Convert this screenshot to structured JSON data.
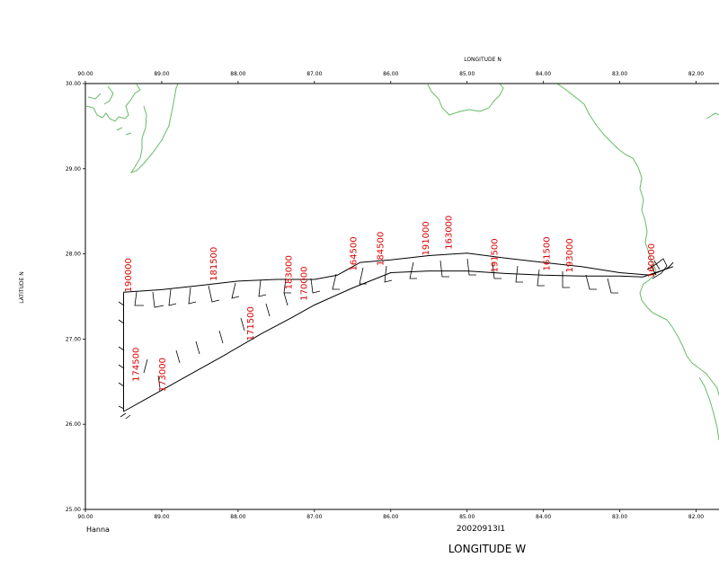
{
  "chart_data": {
    "type": "map",
    "top_axis_label": "LONGITUDE  N",
    "bottom_axis_label": "LONGITUDE  W",
    "left_axis_label": "LATITUDE  N",
    "storm_name": "Hanna",
    "datetime": "20020913I1",
    "lon_range": [
      90.0,
      81.7
    ],
    "lat_range": [
      25.0,
      30.0
    ],
    "x_ticks": [
      "90.00",
      "89.00",
      "88.00",
      "87.00",
      "86.00",
      "85.00",
      "84.00",
      "83.00",
      "82.00"
    ],
    "x_tick_values": [
      90,
      89,
      88,
      87,
      86,
      85,
      84,
      83,
      82
    ],
    "y_ticks": [
      "25.00",
      "26.00",
      "27.00",
      "28.00",
      "29.00",
      "30.00"
    ],
    "y_tick_values": [
      25,
      26,
      27,
      28,
      29,
      30
    ],
    "colors": {
      "frame": "#000000",
      "coast": "#66bb66",
      "track": "#000000",
      "time_labels": "#dd0000"
    },
    "track_upper": [
      [
        82.3,
        27.9
      ],
      [
        82.35,
        27.85
      ],
      [
        82.4,
        27.82
      ],
      [
        82.6,
        27.75
      ],
      [
        83.0,
        27.78
      ],
      [
        83.5,
        27.85
      ],
      [
        84.0,
        27.9
      ],
      [
        84.5,
        27.95
      ],
      [
        85.0,
        28.01
      ],
      [
        85.5,
        27.98
      ],
      [
        86.0,
        27.93
      ],
      [
        86.4,
        27.9
      ],
      [
        86.7,
        27.75
      ],
      [
        87.0,
        27.7
      ],
      [
        87.5,
        27.7
      ],
      [
        88.0,
        27.68
      ],
      [
        88.5,
        27.63
      ],
      [
        89.0,
        27.58
      ],
      [
        89.5,
        27.55
      ]
    ],
    "track_lower": [
      [
        82.3,
        27.85
      ],
      [
        82.7,
        27.73
      ],
      [
        83.0,
        27.74
      ],
      [
        83.5,
        27.74
      ],
      [
        84.0,
        27.75
      ],
      [
        84.5,
        27.77
      ],
      [
        85.0,
        27.8
      ],
      [
        85.5,
        27.8
      ],
      [
        86.0,
        27.78
      ],
      [
        86.5,
        27.6
      ],
      [
        87.0,
        27.4
      ],
      [
        87.3,
        27.25
      ],
      [
        87.7,
        27.06
      ],
      [
        88.2,
        26.8
      ],
      [
        88.7,
        26.55
      ],
      [
        89.2,
        26.3
      ],
      [
        89.5,
        26.15
      ]
    ],
    "vertical_segment": [
      [
        89.5,
        27.55
      ],
      [
        89.5,
        26.15
      ]
    ],
    "time_labels": [
      {
        "text": "190000",
        "lon": 89.4,
        "lat": 27.55
      },
      {
        "text": "181500",
        "lon": 88.28,
        "lat": 27.68
      },
      {
        "text": "183000",
        "lon": 87.3,
        "lat": 27.58
      },
      {
        "text": "170000",
        "lon": 87.1,
        "lat": 27.45
      },
      {
        "text": "164500",
        "lon": 86.45,
        "lat": 27.8
      },
      {
        "text": "184500",
        "lon": 86.1,
        "lat": 27.86
      },
      {
        "text": "191000",
        "lon": 85.5,
        "lat": 27.98
      },
      {
        "text": "163000",
        "lon": 85.2,
        "lat": 28.05
      },
      {
        "text": "191500",
        "lon": 84.6,
        "lat": 27.78
      },
      {
        "text": "161500",
        "lon": 83.92,
        "lat": 27.8
      },
      {
        "text": "193000",
        "lon": 83.62,
        "lat": 27.78
      },
      {
        "text": "160000",
        "lon": 82.55,
        "lat": 27.72
      },
      {
        "text": "171500",
        "lon": 87.8,
        "lat": 26.98
      },
      {
        "text": "174500",
        "lon": 89.3,
        "lat": 26.5
      },
      {
        "text": "173000",
        "lon": 88.95,
        "lat": 26.38
      }
    ]
  }
}
